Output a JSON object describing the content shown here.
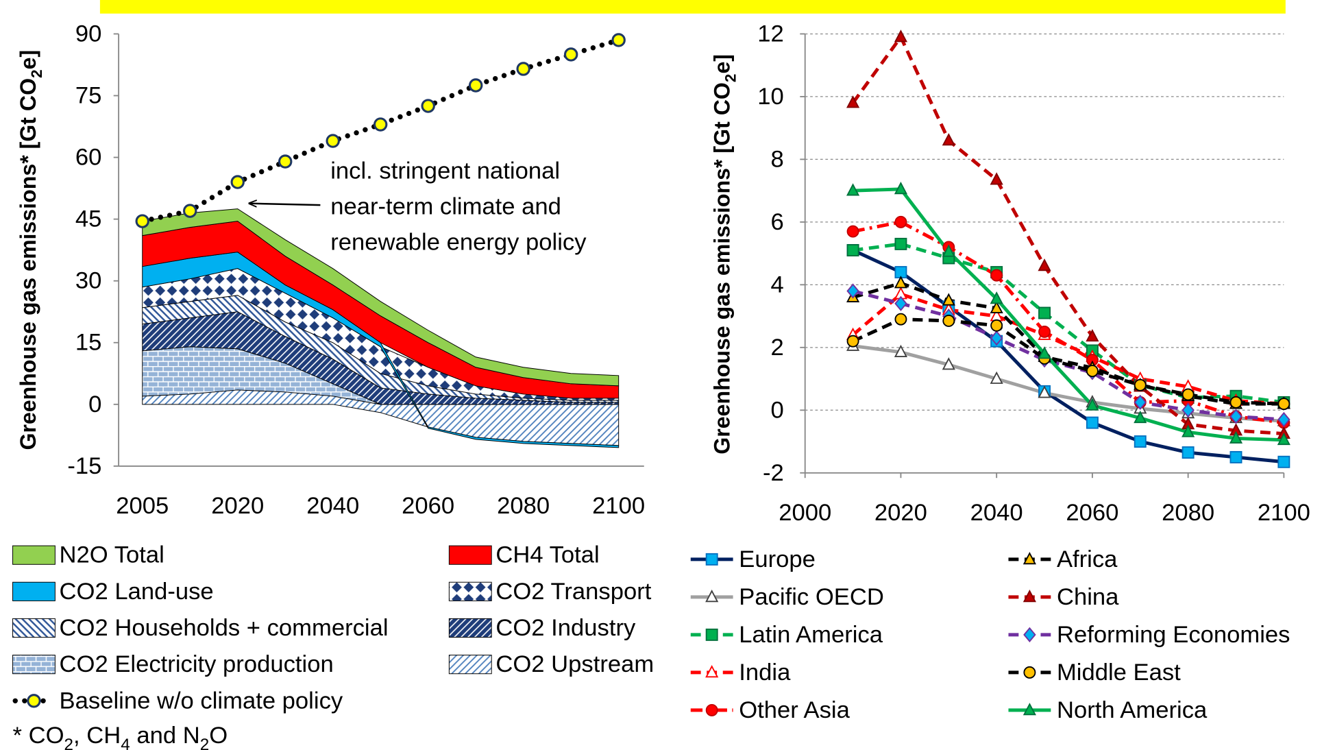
{
  "chart_data": [
    {
      "type": "area",
      "stacked": true,
      "categories": [
        "2005",
        null,
        "2020",
        null,
        "2040",
        null,
        "2060",
        null,
        "2080",
        null,
        "2100"
      ],
      "ylim": [
        -15,
        90
      ],
      "yticks": [
        -15,
        0,
        15,
        30,
        45,
        60,
        75,
        90
      ],
      "grid": false,
      "ylabel": [
        "Greenhouse gas emissions* [Gt CO",
        "2",
        "e]"
      ],
      "annotation": [
        "incl. stringent national",
        "near-term climate and",
        "renewable energy policy"
      ],
      "series": [
        {
          "name": "CO2 Upstream",
          "color": "#4f81bd",
          "pattern": "thin-diagonal",
          "values": [
            2,
            2.5,
            3.5,
            3,
            2,
            -2,
            -5.5,
            -8,
            -9,
            -9.5,
            -10
          ]
        },
        {
          "name": "CO2 Electricity production",
          "color": "#95b3d7",
          "pattern": "bricks",
          "values": [
            11,
            11.5,
            10,
            7,
            3,
            0,
            0,
            0,
            0,
            0,
            0
          ]
        },
        {
          "name": "CO2 Industry",
          "color": "#1f3d7a",
          "pattern": "wide-diagonal",
          "values": [
            6.5,
            7,
            9,
            6.5,
            6,
            4,
            2.5,
            1.5,
            1,
            0.5,
            0.5
          ]
        },
        {
          "name": "CO2 Households + commercial",
          "color": "#2e5597",
          "pattern": "backslash",
          "values": [
            4,
            4,
            4,
            3.5,
            4,
            3.5,
            2,
            1,
            0.5,
            0.5,
            0.5
          ]
        },
        {
          "name": "CO2 Transport",
          "color": "#1f3d7a",
          "pattern": "diamond",
          "values": [
            5,
            5.5,
            6.5,
            7,
            6,
            6.5,
            4.5,
            2,
            1,
            0.5,
            0.5
          ]
        },
        {
          "name": "CO2 Land-use",
          "color": "#00b0f0",
          "values": [
            5,
            5,
            4,
            2,
            2,
            1,
            -0.3,
            -0.5,
            -0.5,
            -0.5,
            -0.5
          ]
        },
        {
          "name": "CH4 Total",
          "color": "#ff0000",
          "values": [
            7.5,
            7.5,
            7.5,
            7,
            6,
            6.5,
            6,
            4.5,
            4,
            3.5,
            3
          ]
        },
        {
          "name": "N2O Total",
          "color": "#92d050",
          "values": [
            3.5,
            3.5,
            3,
            4,
            4,
            3.5,
            3,
            2.5,
            2.5,
            2.5,
            2.5
          ]
        },
        {
          "name": "Baseline w/o climate policy",
          "type": "line",
          "color": "#000000",
          "dash": "dotted",
          "marker": "circle",
          "marker_fill": "#ffff00",
          "marker_edge": "#1f3864",
          "values": [
            44.5,
            47,
            54,
            59,
            64,
            68,
            72.5,
            77.5,
            81.5,
            85,
            88.5
          ]
        }
      ]
    },
    {
      "type": "line",
      "x": [
        2010,
        2020,
        2030,
        2040,
        2050,
        2060,
        2070,
        2080,
        2090,
        2100
      ],
      "xlim": [
        2000,
        2100
      ],
      "xticks": [
        2000,
        2020,
        2040,
        2060,
        2080,
        2100
      ],
      "ylim": [
        -2,
        12
      ],
      "yticks": [
        -2,
        0,
        2,
        4,
        6,
        8,
        10,
        12
      ],
      "grid": true,
      "ylabel": [
        "Greenhouse gas emissions* [Gt CO",
        "2",
        "e]"
      ],
      "series": [
        {
          "name": "Europe",
          "color": "#002060",
          "dash": "solid",
          "marker": "square",
          "marker_fill": "#00b0f0",
          "marker_edge": "#0070c0",
          "values": [
            5.1,
            4.4,
            3.3,
            2.2,
            0.6,
            -0.4,
            -1.0,
            -1.35,
            -1.5,
            -1.65
          ]
        },
        {
          "name": "Pacific OECD",
          "color": "#a0a0a0",
          "dash": "solid",
          "marker": "triangle",
          "marker_fill": "#ffffff",
          "marker_edge": "#404040",
          "values": [
            2.05,
            1.85,
            1.45,
            1.0,
            0.55,
            0.25,
            0.05,
            -0.1,
            -0.25,
            -0.35
          ]
        },
        {
          "name": "Latin America",
          "color": "#00b050",
          "dash": "dashed",
          "marker": "square",
          "marker_fill": "#00b050",
          "marker_edge": "#00703c",
          "values": [
            5.1,
            5.3,
            4.85,
            4.4,
            3.1,
            1.9,
            0.8,
            0.4,
            0.45,
            0.25
          ]
        },
        {
          "name": "India",
          "color": "#ff0000",
          "dash": "dashed",
          "marker": "triangle",
          "marker_fill": "#ffffff",
          "marker_edge": "#ff0000",
          "values": [
            2.4,
            3.7,
            3.2,
            3.0,
            2.4,
            1.7,
            1.0,
            0.75,
            0.3,
            0.2
          ]
        },
        {
          "name": "Other  Asia",
          "color": "#ff0000",
          "dash": "dashdot",
          "marker": "circle",
          "marker_fill": "#ff0000",
          "marker_edge": "#c00000",
          "values": [
            5.7,
            6.0,
            5.2,
            4.3,
            2.5,
            1.6,
            0.25,
            0.3,
            -0.2,
            -0.4
          ]
        },
        {
          "name": "Africa",
          "color": "#000000",
          "dash": "dashed",
          "marker": "triangle",
          "marker_fill": "#ffc000",
          "marker_edge": "#000000",
          "values": [
            3.6,
            4.05,
            3.5,
            3.25,
            1.7,
            1.35,
            0.8,
            0.45,
            0.2,
            0.2
          ]
        },
        {
          "name": "China",
          "color": "#c00000",
          "dash": "dashed",
          "marker": "triangle",
          "marker_fill": "#c00000",
          "marker_edge": "#800000",
          "values": [
            9.8,
            11.9,
            8.6,
            7.35,
            4.6,
            2.35,
            0.75,
            -0.45,
            -0.65,
            -0.75
          ]
        },
        {
          "name": "Reforming Economies",
          "color": "#7030a0",
          "dash": "dashed",
          "marker": "diamond",
          "marker_fill": "#00b0f0",
          "marker_edge": "#7030a0",
          "values": [
            3.8,
            3.4,
            3.0,
            2.3,
            1.6,
            1.2,
            0.25,
            0.0,
            -0.2,
            -0.3
          ]
        },
        {
          "name": "Middle East",
          "color": "#000000",
          "dash": "dashed",
          "marker": "circle",
          "marker_fill": "#ffc000",
          "marker_edge": "#000000",
          "values": [
            2.2,
            2.9,
            2.85,
            2.7,
            1.65,
            1.25,
            0.8,
            0.5,
            0.25,
            0.2
          ]
        },
        {
          "name": "North America",
          "color": "#00b050",
          "dash": "solid",
          "marker": "triangle",
          "marker_fill": "#00b050",
          "marker_edge": "#00703c",
          "values": [
            7.0,
            7.05,
            5.05,
            3.55,
            1.8,
            0.15,
            -0.25,
            -0.7,
            -0.9,
            -0.95
          ]
        }
      ]
    }
  ],
  "footnote": [
    "* CO",
    "2",
    ", CH",
    "4",
    " and N",
    "2",
    "O"
  ]
}
